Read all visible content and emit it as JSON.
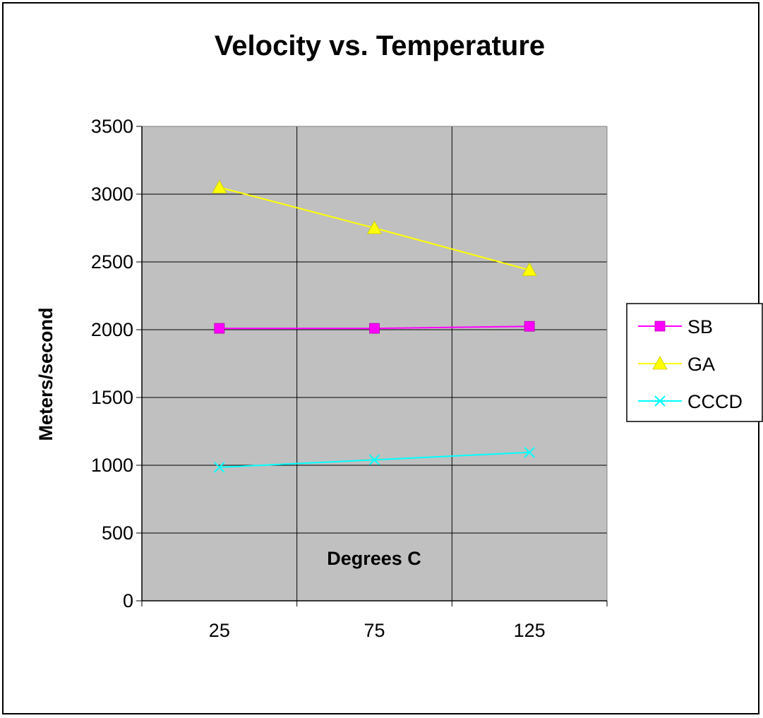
{
  "chart_data": {
    "type": "line",
    "title": "Velocity vs. Temperature",
    "xlabel": "Degrees C",
    "ylabel": "Meters/second",
    "categories": [
      "25",
      "75",
      "125"
    ],
    "ylim": [
      0,
      3500
    ],
    "yticks": [
      0,
      500,
      1000,
      1500,
      2000,
      2500,
      3000,
      3500
    ],
    "grid": true,
    "plot_background": "#c0c0c0",
    "legend_position": "right",
    "series": [
      {
        "name": "SB",
        "values": [
          2010,
          2010,
          2025
        ],
        "color": "#ff00ff",
        "marker": "square"
      },
      {
        "name": "GA",
        "values": [
          3050,
          2750,
          2440
        ],
        "color": "#ffff00",
        "marker": "triangle"
      },
      {
        "name": "CCCD",
        "values": [
          985,
          1040,
          1095
        ],
        "color": "#00ffff",
        "marker": "x"
      }
    ]
  }
}
